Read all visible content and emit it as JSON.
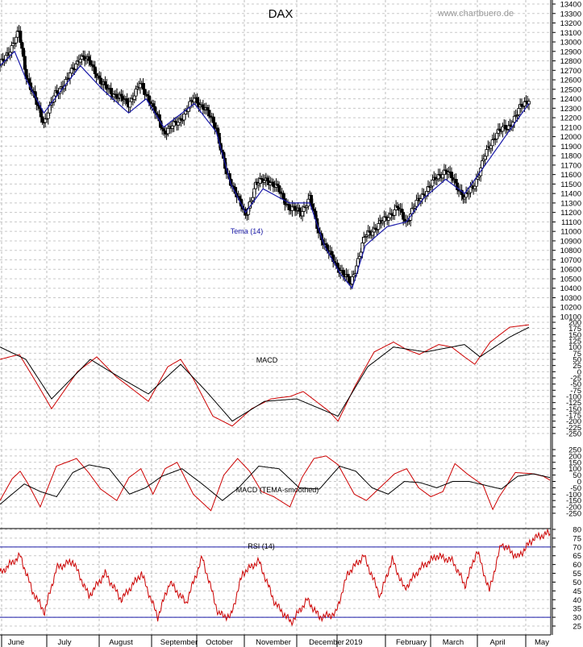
{
  "chart_data": {
    "type": "line",
    "title": "DAX",
    "source_label": "www.chartbuero.de",
    "months": [
      "June",
      "July",
      "August",
      "September",
      "October",
      "November",
      "December",
      "2019",
      "February",
      "March",
      "April",
      "May"
    ],
    "price_panel": {
      "series_type": "candlestick",
      "overlay_label": "Tema (14)",
      "ylim": [
        10100,
        13400
      ],
      "y_ticks": [
        13400,
        13300,
        13200,
        13100,
        13000,
        12900,
        12800,
        12700,
        12600,
        12500,
        12400,
        12300,
        12200,
        12100,
        12000,
        11900,
        11800,
        11700,
        11600,
        11500,
        11400,
        11300,
        11200,
        11100,
        11000,
        10900,
        10800,
        10700,
        10600,
        10500,
        10400,
        10300,
        10200,
        10100
      ],
      "closes_keypoints": [
        [
          0,
          12750
        ],
        [
          8,
          12950
        ],
        [
          13,
          13100
        ],
        [
          18,
          12650
        ],
        [
          25,
          12350
        ],
        [
          30,
          12150
        ],
        [
          38,
          12450
        ],
        [
          46,
          12600
        ],
        [
          55,
          12850
        ],
        [
          62,
          12780
        ],
        [
          70,
          12550
        ],
        [
          78,
          12450
        ],
        [
          88,
          12350
        ],
        [
          96,
          12550
        ],
        [
          102,
          12400
        ],
        [
          112,
          12050
        ],
        [
          122,
          12150
        ],
        [
          133,
          12400
        ],
        [
          140,
          12300
        ],
        [
          148,
          12100
        ],
        [
          155,
          11600
        ],
        [
          162,
          11400
        ],
        [
          168,
          11150
        ],
        [
          175,
          11500
        ],
        [
          183,
          11550
        ],
        [
          190,
          11450
        ],
        [
          198,
          11250
        ],
        [
          206,
          11200
        ],
        [
          212,
          11350
        ],
        [
          218,
          11000
        ],
        [
          224,
          10800
        ],
        [
          230,
          10650
        ],
        [
          235,
          10550
        ],
        [
          240,
          10450
        ],
        [
          245,
          10700
        ],
        [
          250,
          10950
        ],
        [
          258,
          11050
        ],
        [
          265,
          11150
        ],
        [
          272,
          11250
        ],
        [
          278,
          11100
        ],
        [
          283,
          11250
        ],
        [
          290,
          11400
        ],
        [
          298,
          11550
        ],
        [
          305,
          11650
        ],
        [
          312,
          11500
        ],
        [
          318,
          11350
        ],
        [
          325,
          11500
        ],
        [
          332,
          11800
        ],
        [
          340,
          12050
        ],
        [
          348,
          12100
        ],
        [
          356,
          12300
        ],
        [
          362,
          12400
        ]
      ],
      "tema_keypoints": [
        [
          0,
          12750
        ],
        [
          10,
          12900
        ],
        [
          18,
          12600
        ],
        [
          30,
          12250
        ],
        [
          40,
          12450
        ],
        [
          55,
          12750
        ],
        [
          70,
          12500
        ],
        [
          88,
          12250
        ],
        [
          100,
          12400
        ],
        [
          112,
          12100
        ],
        [
          133,
          12350
        ],
        [
          148,
          12050
        ],
        [
          158,
          11500
        ],
        [
          168,
          11200
        ],
        [
          180,
          11450
        ],
        [
          198,
          11300
        ],
        [
          212,
          11300
        ],
        [
          222,
          10850
        ],
        [
          233,
          10550
        ],
        [
          241,
          10400
        ],
        [
          250,
          10850
        ],
        [
          265,
          11050
        ],
        [
          278,
          11100
        ],
        [
          290,
          11350
        ],
        [
          305,
          11550
        ],
        [
          318,
          11400
        ],
        [
          332,
          11700
        ],
        [
          348,
          12050
        ],
        [
          362,
          12350
        ]
      ]
    },
    "macd_panel": {
      "label": "MACD",
      "ylim": [
        -250,
        200
      ],
      "y_ticks": [
        200,
        175,
        150,
        125,
        100,
        75,
        50,
        25,
        0,
        -25,
        -50,
        -75,
        -100,
        -125,
        -150,
        -175,
        -200,
        -225,
        -250
      ],
      "series": [
        {
          "color": "#cc0000",
          "keypoints": [
            [
              0,
              50
            ],
            [
              15,
              70
            ],
            [
              30,
              -60
            ],
            [
              40,
              -150
            ],
            [
              60,
              0
            ],
            [
              75,
              60
            ],
            [
              90,
              -20
            ],
            [
              100,
              -60
            ],
            [
              115,
              -120
            ],
            [
              130,
              20
            ],
            [
              140,
              50
            ],
            [
              150,
              -30
            ],
            [
              165,
              -180
            ],
            [
              180,
              -220
            ],
            [
              195,
              -150
            ],
            [
              210,
              -110
            ],
            [
              225,
              -100
            ],
            [
              235,
              -80
            ],
            [
              245,
              -120
            ],
            [
              255,
              -160
            ],
            [
              262,
              -200
            ],
            [
              275,
              -60
            ],
            [
              290,
              80
            ],
            [
              305,
              120
            ],
            [
              315,
              90
            ],
            [
              325,
              70
            ],
            [
              340,
              110
            ],
            [
              350,
              100
            ],
            [
              360,
              60
            ],
            [
              368,
              30
            ],
            [
              380,
              120
            ],
            [
              395,
              180
            ],
            [
              410,
              190
            ]
          ]
        },
        {
          "color": "#000000",
          "keypoints": [
            [
              0,
              100
            ],
            [
              20,
              50
            ],
            [
              40,
              -110
            ],
            [
              70,
              50
            ],
            [
              95,
              -30
            ],
            [
              115,
              -90
            ],
            [
              140,
              30
            ],
            [
              160,
              -80
            ],
            [
              180,
              -200
            ],
            [
              205,
              -120
            ],
            [
              230,
              -110
            ],
            [
              262,
              -180
            ],
            [
              285,
              20
            ],
            [
              305,
              100
            ],
            [
              330,
              80
            ],
            [
              360,
              110
            ],
            [
              372,
              60
            ],
            [
              395,
              140
            ],
            [
              410,
              180
            ]
          ]
        }
      ]
    },
    "macd_smoothed_panel": {
      "label": "MACD (TEMA-smoothed)",
      "ylim": [
        -250,
        250
      ],
      "y_ticks": [
        250,
        200,
        150,
        100,
        50,
        0,
        -50,
        -100,
        -150,
        -200,
        -250
      ],
      "series": [
        {
          "color": "#cc0000",
          "keypoints": [
            [
              0,
              -150
            ],
            [
              15,
              20
            ],
            [
              25,
              80
            ],
            [
              35,
              -20
            ],
            [
              50,
              -200
            ],
            [
              70,
              120
            ],
            [
              95,
              180
            ],
            [
              110,
              70
            ],
            [
              125,
              -60
            ],
            [
              145,
              -150
            ],
            [
              160,
              30
            ],
            [
              175,
              100
            ],
            [
              190,
              -100
            ],
            [
              205,
              100
            ],
            [
              220,
              150
            ],
            [
              240,
              -100
            ],
            [
              262,
              -230
            ],
            [
              278,
              50
            ],
            [
              295,
              180
            ],
            [
              310,
              80
            ],
            [
              325,
              -80
            ],
            [
              340,
              -120
            ],
            [
              360,
              -200
            ],
            [
              375,
              30
            ],
            [
              390,
              180
            ],
            [
              405,
              200
            ],
            [
              420,
              130
            ],
            [
              440,
              -100
            ],
            [
              455,
              -150
            ],
            [
              470,
              -60
            ],
            [
              490,
              60
            ],
            [
              505,
              100
            ],
            [
              520,
              -50
            ],
            [
              535,
              -120
            ],
            [
              550,
              -80
            ],
            [
              565,
              140
            ],
            [
              580,
              60
            ],
            [
              600,
              -30
            ],
            [
              612,
              -220
            ],
            [
              620,
              -120
            ],
            [
              640,
              70
            ],
            [
              662,
              60
            ],
            [
              675,
              40
            ],
            [
              683,
              10
            ]
          ]
        },
        {
          "color": "#000000",
          "keypoints": [
            [
              0,
              -180
            ],
            [
              30,
              -20
            ],
            [
              50,
              -80
            ],
            [
              70,
              -120
            ],
            [
              90,
              70
            ],
            [
              110,
              130
            ],
            [
              135,
              100
            ],
            [
              160,
              -100
            ],
            [
              180,
              -50
            ],
            [
              200,
              40
            ],
            [
              225,
              100
            ],
            [
              250,
              -20
            ],
            [
              275,
              -150
            ],
            [
              295,
              -50
            ],
            [
              320,
              120
            ],
            [
              345,
              100
            ],
            [
              370,
              -50
            ],
            [
              395,
              -60
            ],
            [
              420,
              120
            ],
            [
              440,
              80
            ],
            [
              460,
              -50
            ],
            [
              480,
              -100
            ],
            [
              500,
              0
            ],
            [
              520,
              -10
            ],
            [
              540,
              -50
            ],
            [
              560,
              0
            ],
            [
              580,
              0
            ],
            [
              600,
              -30
            ],
            [
              620,
              -60
            ],
            [
              640,
              40
            ],
            [
              660,
              60
            ],
            [
              680,
              30
            ]
          ]
        }
      ]
    },
    "rsi_panel": {
      "label": "RSI (14)",
      "ylim": [
        25,
        80
      ],
      "y_ticks": [
        80,
        75,
        70,
        65,
        60,
        55,
        50,
        45,
        40,
        35,
        30,
        25
      ],
      "reference_lines": [
        70,
        30
      ],
      "series": [
        {
          "color": "#cc0000",
          "keypoints": [
            [
              0,
              55
            ],
            [
              12,
              60
            ],
            [
              25,
              65
            ],
            [
              40,
              45
            ],
            [
              55,
              33
            ],
            [
              70,
              58
            ],
            [
              90,
              62
            ],
            [
              110,
              42
            ],
            [
              130,
              55
            ],
            [
              150,
              40
            ],
            [
              175,
              55
            ],
            [
              195,
              30
            ],
            [
              210,
              50
            ],
            [
              230,
              38
            ],
            [
              250,
              64
            ],
            [
              270,
              32
            ],
            [
              285,
              30
            ],
            [
              300,
              55
            ],
            [
              320,
              62
            ],
            [
              340,
              38
            ],
            [
              360,
              27
            ],
            [
              380,
              40
            ],
            [
              395,
              30
            ],
            [
              415,
              32
            ],
            [
              430,
              55
            ],
            [
              450,
              65
            ],
            [
              470,
              42
            ],
            [
              485,
              63
            ],
            [
              500,
              46
            ],
            [
              520,
              58
            ],
            [
              540,
              65
            ],
            [
              560,
              62
            ],
            [
              575,
              48
            ],
            [
              590,
              68
            ],
            [
              605,
              45
            ],
            [
              620,
              72
            ],
            [
              640,
              64
            ],
            [
              660,
              75
            ],
            [
              680,
              78
            ]
          ]
        }
      ]
    }
  }
}
